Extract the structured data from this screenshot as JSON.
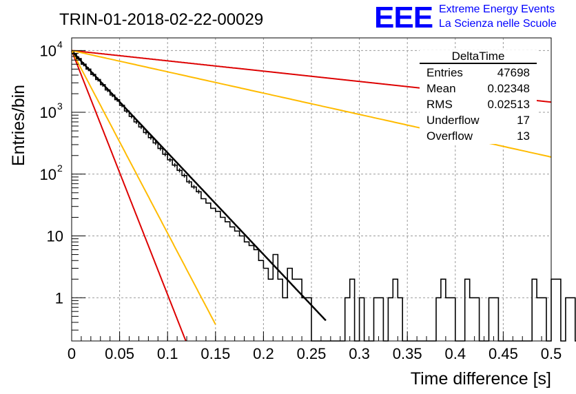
{
  "header": {
    "run_title": "TRIN-01-2018-02-22-00029",
    "logo_text": "EEE",
    "logo_line1": "Extreme Energy Events",
    "logo_line2": "La Scienza nelle Scuole"
  },
  "stats": {
    "title": "DeltaTime",
    "rows": [
      {
        "label": "Entries",
        "value": "47698"
      },
      {
        "label": "Mean",
        "value": "0.02348"
      },
      {
        "label": "RMS",
        "value": "0.02513"
      },
      {
        "label": "Underflow",
        "value": "17"
      },
      {
        "label": "Overflow",
        "value": "13"
      }
    ]
  },
  "colors": {
    "histogram": "#000000",
    "fit": "#000000",
    "red_curves": "#dd0000",
    "orange_curves": "#ffbb00",
    "logo": "#0000ff",
    "grid": "#999999"
  },
  "chart_data": {
    "type": "line",
    "xlabel": "Time difference [s]",
    "ylabel": "Entries/bin",
    "xlim": [
      0,
      0.5
    ],
    "ylim": [
      0.2,
      16000
    ],
    "y_scale": "log",
    "grid": true,
    "x_ticks": [
      "0",
      "0.05",
      "0.1",
      "0.15",
      "0.2",
      "0.25",
      "0.3",
      "0.35",
      "0.4",
      "0.45",
      "0.5"
    ],
    "y_ticks": [
      {
        "value": 1,
        "label": "1"
      },
      {
        "value": 10,
        "label": "10"
      },
      {
        "value": 100,
        "label": "10",
        "exp": "2"
      },
      {
        "value": 1000,
        "label": "10",
        "exp": "3"
      },
      {
        "value": 10000,
        "label": "10",
        "exp": "4"
      }
    ],
    "histogram": {
      "bin_width": 0.005,
      "x_start": 0,
      "values": [
        8900,
        7400,
        6000,
        5000,
        4100,
        3400,
        2800,
        2300,
        1900,
        1600,
        1300,
        1050,
        860,
        700,
        580,
        470,
        390,
        320,
        260,
        210,
        170,
        140,
        115,
        95,
        75,
        62,
        52,
        40,
        34,
        28,
        25,
        20,
        17,
        14,
        12,
        10,
        8,
        7,
        6,
        4,
        3,
        2,
        5,
        2,
        1,
        3,
        2,
        2,
        1,
        1,
        0,
        0,
        0,
        0,
        0,
        0,
        0,
        1,
        2,
        0,
        1,
        0,
        0,
        1,
        1,
        0,
        1,
        2,
        1,
        0,
        0,
        0,
        0,
        0,
        0,
        0,
        1,
        2,
        1,
        1,
        0,
        0,
        2,
        1,
        1,
        0,
        0,
        1,
        1,
        0,
        0,
        0,
        0,
        0,
        0,
        0,
        2,
        1,
        1,
        0,
        2,
        2,
        0,
        1,
        1,
        0,
        0,
        0,
        0,
        2,
        2,
        1,
        1,
        0,
        0,
        1,
        2,
        0,
        1,
        0,
        1,
        1,
        1,
        1,
        2,
        1,
        1,
        1,
        1,
        1,
        1,
        1,
        0,
        1,
        2,
        1,
        1,
        2,
        0,
        0,
        2,
        0,
        1,
        1,
        1,
        1,
        0,
        0,
        2,
        1
      ]
    },
    "series": [
      {
        "name": "fit",
        "color": "#000000",
        "A": 9800,
        "tau": 0.0264,
        "x_range": [
          0,
          0.265
        ]
      },
      {
        "name": "",
        "color": "#dd0000",
        "A": 10000,
        "tau": 0.011,
        "x_range": [
          0,
          0.12
        ]
      },
      {
        "name": "",
        "color": "#ffbb00",
        "A": 10000,
        "tau": 0.0147,
        "x_range": [
          0,
          0.15
        ]
      },
      {
        "name": "",
        "color": "#dd0000",
        "A": 10000,
        "tau": 0.26,
        "x_range": [
          0,
          0.5
        ]
      },
      {
        "name": "",
        "color": "#ffbb00",
        "A": 10000,
        "tau": 0.126,
        "x_range": [
          0,
          0.5
        ]
      }
    ]
  }
}
